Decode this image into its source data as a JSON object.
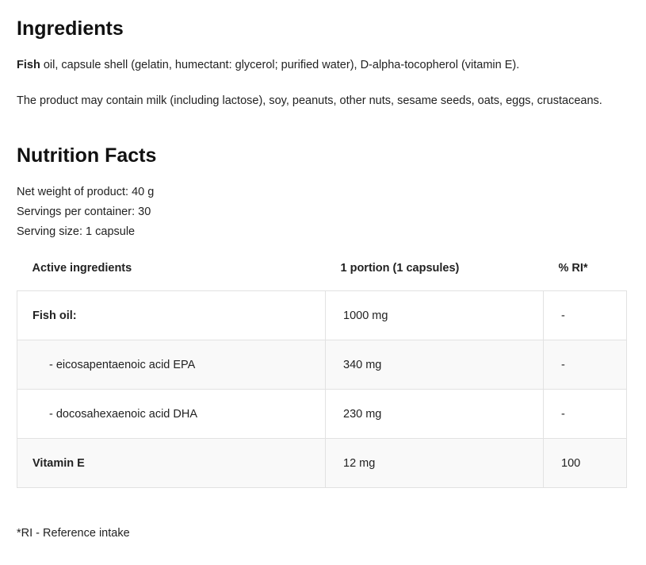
{
  "ingredients": {
    "title": "Ingredients",
    "lead_bold": "Fish",
    "lead_rest": " oil, capsule shell (gelatin, humectant: glycerol; purified water), D-alpha-tocopherol (vitamin E).",
    "allergens": "The product may contain milk (including lactose), soy, peanuts, other nuts, sesame seeds, oats, eggs, crustaceans."
  },
  "nutrition": {
    "title": "Nutrition Facts",
    "net_weight": "Net weight of product: 40 g",
    "servings": "Servings per container: 30",
    "serving_size": "Serving size: 1 capsule",
    "headers": [
      "Active ingredients",
      "1 portion (1 capsules)",
      "% RI*"
    ],
    "rows": [
      {
        "name": "Fish oil:",
        "amount": "1000 mg",
        "ri": "-"
      },
      {
        "name": "- eicosapentaenoic acid EPA",
        "amount": "340 mg",
        "ri": "-"
      },
      {
        "name": "- docosahexaenoic acid DHA",
        "amount": "230 mg",
        "ri": "-"
      },
      {
        "name": "Vitamin E",
        "amount": "12 mg",
        "ri": "100"
      }
    ],
    "footnote": "*RI - Reference intake"
  }
}
